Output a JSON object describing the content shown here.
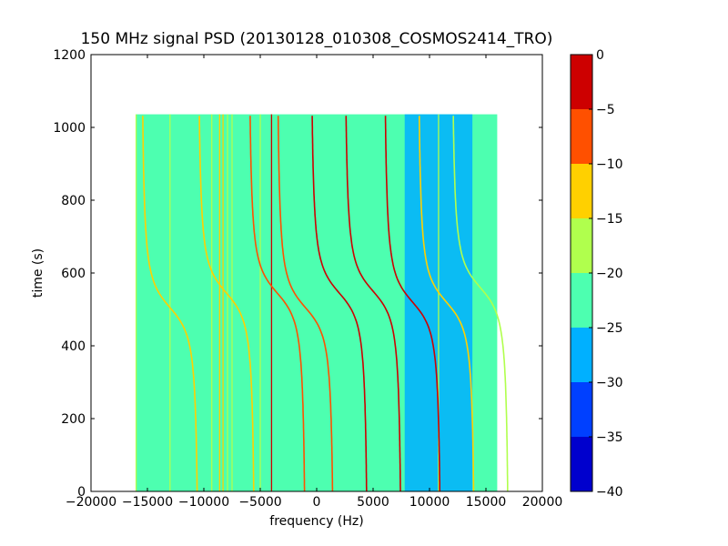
{
  "chart_data": {
    "type": "heatmap",
    "title": "150 MHz signal PSD (20130128_010308_COSMOS2414_TRO)",
    "xlabel": "frequency (Hz)",
    "ylabel": "time (s)",
    "xlim": [
      -20000,
      20000
    ],
    "ylim": [
      0,
      1200
    ],
    "x_ticks": [
      -20000,
      -15000,
      -10000,
      -5000,
      0,
      5000,
      10000,
      15000,
      20000
    ],
    "x_tick_labels": [
      "−20000",
      "−15000",
      "−10000",
      "−5000",
      "0",
      "5000",
      "10000",
      "15000",
      "20000"
    ],
    "y_ticks": [
      0,
      200,
      400,
      600,
      800,
      1000,
      1200
    ],
    "y_tick_labels": [
      "0",
      "200",
      "400",
      "600",
      "800",
      "1000",
      "1200"
    ],
    "data_extent": {
      "freq_min": -16000,
      "freq_max": 16000,
      "time_min": 0,
      "time_max": 1036
    },
    "background_level": -22.5,
    "colorbar": {
      "range": [
        -40,
        0
      ],
      "boundaries": [
        -40,
        -35,
        -30,
        -25,
        -20,
        -15,
        -10,
        -5,
        0
      ],
      "tick_labels": [
        "0",
        "−5",
        "−10",
        "−15",
        "−20",
        "−25",
        "−30",
        "−35",
        "−40"
      ],
      "colors": [
        "#0000cd",
        "#0040ff",
        "#00b0ff",
        "#4dffb0",
        "#b0ff4d",
        "#ffd000",
        "#ff5000",
        "#cd0000"
      ]
    },
    "weak_band": {
      "freq_range": [
        7800,
        13800
      ],
      "level": -27.5
    },
    "vertical_lines": [
      {
        "freq": -16000,
        "level": -17.5
      },
      {
        "freq": -13000,
        "level": -17.5
      },
      {
        "freq": -9300,
        "level": -17.5
      },
      {
        "freq": -8600,
        "level": -12.5
      },
      {
        "freq": -8300,
        "level": -12.5
      },
      {
        "freq": -7900,
        "level": -17.5
      },
      {
        "freq": -7500,
        "level": -17.5
      },
      {
        "freq": -5000,
        "level": -17.5
      },
      {
        "freq": -4000,
        "level": -2.5
      },
      {
        "freq": 10800,
        "level": -17.5
      }
    ],
    "doppler_tracks": [
      {
        "center_freq": -13000,
        "center_time": 505,
        "level": -12.5
      },
      {
        "center_freq": -8000,
        "center_time": 545,
        "level": -12.5
      },
      {
        "center_freq": -3500,
        "center_time": 545,
        "level": -7.5
      },
      {
        "center_freq": -1000,
        "center_time": 505,
        "level": -7.5
      },
      {
        "center_freq": 2000,
        "center_time": 545,
        "level": -2.5
      },
      {
        "center_freq": 5000,
        "center_time": 550,
        "level": -2.5
      },
      {
        "center_freq": 8500,
        "center_time": 520,
        "level": -2.5
      },
      {
        "center_freq": 11500,
        "center_time": 520,
        "level": -12.5
      },
      {
        "center_freq": 14500,
        "center_time": 560,
        "level": -17.5
      }
    ]
  }
}
